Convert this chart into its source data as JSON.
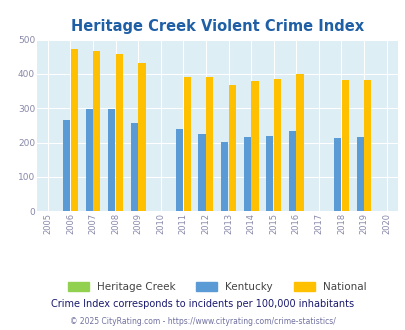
{
  "title": "Heritage Creek Violent Crime Index",
  "years": [
    2005,
    2006,
    2007,
    2008,
    2009,
    2010,
    2011,
    2012,
    2013,
    2014,
    2015,
    2016,
    2017,
    2018,
    2019,
    2020
  ],
  "kentucky": [
    null,
    265,
    298,
    298,
    258,
    null,
    240,
    224,
    202,
    215,
    220,
    234,
    null,
    214,
    217,
    null
  ],
  "national": [
    null,
    474,
    468,
    457,
    432,
    null,
    390,
    390,
    368,
    378,
    385,
    399,
    null,
    381,
    381,
    null
  ],
  "bar_color_kentucky": "#5b9bd5",
  "bar_color_national": "#ffc000",
  "bar_color_heritage": "#92d050",
  "background_color": "#ddeef4",
  "title_color": "#1f5fa6",
  "yticks": [
    0,
    100,
    200,
    300,
    400,
    500
  ],
  "subtitle": "Crime Index corresponds to incidents per 100,000 inhabitants",
  "footer": "© 2025 CityRating.com - https://www.cityrating.com/crime-statistics/",
  "bar_width": 0.32,
  "subtitle_color": "#1a1a6e",
  "footer_color": "#7070a0",
  "tick_label_color": "#8888aa",
  "legend_text_color": "#444444"
}
